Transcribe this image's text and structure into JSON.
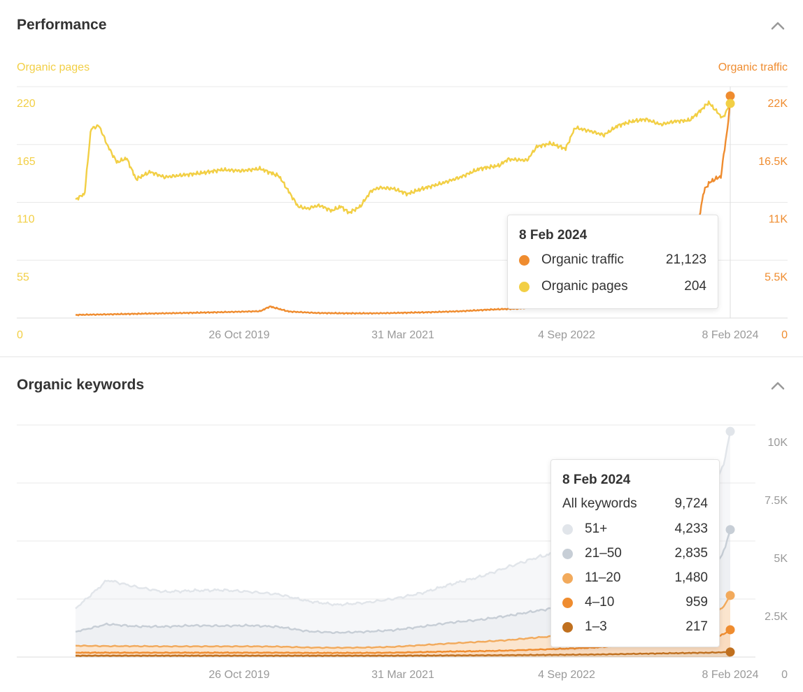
{
  "performance": {
    "title": "Performance",
    "left_axis_title": "Organic pages",
    "right_axis_title": "Organic traffic",
    "tooltip": {
      "date": "8 Feb 2024",
      "rows": [
        {
          "name": "Organic traffic",
          "value": "21,123",
          "color": "#ef8c2f"
        },
        {
          "name": "Organic pages",
          "value": "204",
          "color": "#f2cf45"
        }
      ]
    }
  },
  "keywords": {
    "title": "Organic keywords",
    "tooltip": {
      "date": "8 Feb 2024",
      "total_label": "All keywords",
      "total_value": "9,724",
      "rows": [
        {
          "name": "51+",
          "value": "4,233",
          "color": "#e1e5ea"
        },
        {
          "name": "21–50",
          "value": "2,835",
          "color": "#c7ced6"
        },
        {
          "name": "11–20",
          "value": "1,480",
          "color": "#f2aa5c"
        },
        {
          "name": "4–10",
          "value": "959",
          "color": "#ef8c2f"
        },
        {
          "name": "1–3",
          "value": "217",
          "color": "#c0701f"
        }
      ]
    }
  },
  "chart_data": [
    {
      "type": "line",
      "title": "Performance",
      "x_ticks": [
        "26 Oct 2019",
        "31 Mar 2021",
        "4 Sep 2022",
        "8 Feb 2024"
      ],
      "x_domain": [
        "2018-05-22",
        "2024-02-08"
      ],
      "left_axis": {
        "label": "Organic pages",
        "ticks": [
          "0",
          "55",
          "110",
          "165",
          "220"
        ],
        "ylim": [
          0,
          220
        ]
      },
      "right_axis": {
        "label": "Organic traffic",
        "ticks": [
          "0",
          "5.5K",
          "11K",
          "16.5K",
          "22K"
        ],
        "ylim": [
          0,
          22000
        ]
      },
      "grid": true,
      "series": [
        {
          "name": "Organic pages",
          "axis": "left",
          "color": "#f2cf45",
          "x": [
            "2018-05-22",
            "2018-06-20",
            "2018-07-10",
            "2018-08-05",
            "2018-09-01",
            "2018-10-01",
            "2018-11-01",
            "2018-12-01",
            "2019-01-15",
            "2019-03-01",
            "2019-05-01",
            "2019-07-01",
            "2019-09-01",
            "2019-11-01",
            "2020-01-01",
            "2020-03-01",
            "2020-05-01",
            "2020-06-01",
            "2020-06-20",
            "2020-07-10",
            "2020-08-15",
            "2020-09-15",
            "2020-10-10",
            "2020-11-15",
            "2020-12-20",
            "2021-01-15",
            "2021-03-01",
            "2021-04-15",
            "2021-06-01",
            "2021-08-01",
            "2021-10-01",
            "2021-12-01",
            "2022-02-01",
            "2022-03-01",
            "2022-05-01",
            "2022-06-01",
            "2022-07-15",
            "2022-09-01",
            "2022-10-01",
            "2022-11-15",
            "2023-01-01",
            "2023-02-15",
            "2023-04-01",
            "2023-05-15",
            "2023-07-01",
            "2023-08-15",
            "2023-10-01",
            "2023-11-01",
            "2023-12-01",
            "2024-01-15",
            "2024-02-08"
          ],
          "y": [
            113,
            118,
            180,
            183,
            164,
            148,
            152,
            132,
            139,
            134,
            136,
            138,
            141,
            140,
            142,
            135,
            106,
            104,
            106,
            107,
            102,
            106,
            100,
            106,
            121,
            124,
            123,
            118,
            123,
            128,
            134,
            142,
            145,
            151,
            150,
            163,
            166,
            161,
            181,
            178,
            174,
            183,
            187,
            189,
            184,
            187,
            188,
            196,
            205,
            190,
            204
          ]
        },
        {
          "name": "Organic traffic",
          "axis": "right",
          "color": "#ef8c2f",
          "x": [
            "2018-05-22",
            "2018-09-01",
            "2019-01-01",
            "2019-05-01",
            "2019-09-01",
            "2020-01-01",
            "2020-02-01",
            "2020-04-01",
            "2020-07-01",
            "2020-10-01",
            "2021-01-01",
            "2021-04-01",
            "2021-07-01",
            "2021-10-01",
            "2022-01-01",
            "2022-04-01",
            "2022-07-01",
            "2022-10-01",
            "2023-01-01",
            "2023-04-01",
            "2023-07-01",
            "2023-09-15",
            "2023-10-15",
            "2023-11-01",
            "2023-11-15",
            "2023-12-01",
            "2023-12-15",
            "2024-01-10",
            "2024-01-20",
            "2024-01-28",
            "2024-02-03",
            "2024-02-08"
          ],
          "y": [
            300,
            350,
            420,
            480,
            560,
            650,
            1100,
            620,
            480,
            450,
            450,
            500,
            560,
            650,
            800,
            900,
            1100,
            1300,
            1500,
            1700,
            2100,
            3500,
            5000,
            9500,
            12000,
            12800,
            13100,
            13500,
            16000,
            17500,
            19000,
            21123
          ]
        }
      ]
    },
    {
      "type": "area",
      "title": "Organic keywords",
      "x_ticks": [
        "26 Oct 2019",
        "31 Mar 2021",
        "4 Sep 2022",
        "8 Feb 2024"
      ],
      "x_domain": [
        "2018-05-22",
        "2024-02-08"
      ],
      "y_ticks": [
        "0",
        "2.5K",
        "5K",
        "7.5K",
        "10K"
      ],
      "ylim": [
        0,
        10000
      ],
      "grid": true,
      "x": [
        "2018-05-22",
        "2018-09-01",
        "2018-12-01",
        "2019-03-01",
        "2019-06-01",
        "2019-09-01",
        "2019-12-01",
        "2020-03-01",
        "2020-06-01",
        "2020-09-01",
        "2020-12-01",
        "2021-03-01",
        "2021-06-01",
        "2021-09-01",
        "2021-12-01",
        "2022-03-01",
        "2022-06-01",
        "2022-09-01",
        "2022-12-01",
        "2023-03-01",
        "2023-06-01",
        "2023-09-01",
        "2023-12-01",
        "2024-01-15",
        "2024-02-08"
      ],
      "series": [
        {
          "name": "1–3",
          "color": "#c0701f",
          "values": [
            60,
            60,
            60,
            60,
            60,
            60,
            60,
            60,
            60,
            60,
            60,
            60,
            65,
            70,
            75,
            80,
            90,
            100,
            110,
            130,
            150,
            170,
            190,
            205,
            217
          ]
        },
        {
          "name": "4–10",
          "color": "#ef8c2f",
          "values": [
            130,
            130,
            130,
            130,
            130,
            130,
            130,
            130,
            120,
            120,
            120,
            130,
            150,
            170,
            180,
            200,
            230,
            260,
            300,
            370,
            450,
            540,
            620,
            750,
            959
          ]
        },
        {
          "name": "11–20",
          "color": "#f2aa5c",
          "values": [
            300,
            280,
            280,
            270,
            270,
            270,
            270,
            260,
            230,
            220,
            230,
            250,
            300,
            350,
            400,
            450,
            520,
            580,
            650,
            750,
            850,
            930,
            1000,
            1150,
            1480
          ]
        },
        {
          "name": "21–50",
          "color": "#c7ced6",
          "values": [
            600,
            950,
            850,
            850,
            900,
            880,
            900,
            850,
            700,
            650,
            680,
            720,
            800,
            900,
            950,
            1050,
            1150,
            1250,
            1400,
            1600,
            1700,
            1800,
            1900,
            2300,
            2835
          ]
        },
        {
          "name": "51+",
          "color": "#e1e5ea",
          "values": [
            1000,
            1900,
            1700,
            1500,
            1500,
            1550,
            1450,
            1400,
            1300,
            1200,
            1250,
            1350,
            1450,
            1650,
            1850,
            2100,
            2300,
            2400,
            2650,
            2900,
            3200,
            3350,
            3500,
            3700,
            4233
          ]
        }
      ],
      "total": {
        "name": "All keywords",
        "last": 9724
      }
    }
  ]
}
